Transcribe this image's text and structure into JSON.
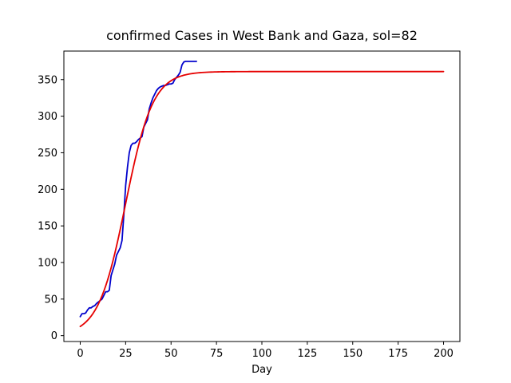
{
  "chart_data": {
    "type": "line",
    "title": "confirmed Cases in West Bank and Gaza, sol=82",
    "xlabel": "Day",
    "ylabel": "",
    "xlim": [
      -9,
      209
    ],
    "ylim": [
      -8,
      389
    ],
    "xticks": [
      0,
      25,
      50,
      75,
      100,
      125,
      150,
      175,
      200
    ],
    "yticks": [
      0,
      50,
      100,
      150,
      200,
      250,
      300,
      350
    ],
    "grid": false,
    "legend": "none",
    "series": [
      {
        "color": "#0000cc",
        "x": [
          0,
          1,
          2,
          3,
          4,
          5,
          6,
          7,
          8,
          9,
          10,
          11,
          12,
          13,
          14,
          15,
          16,
          17,
          18,
          19,
          20,
          21,
          22,
          23,
          24,
          25,
          26,
          27,
          28,
          29,
          30,
          31,
          32,
          33,
          34,
          35,
          36,
          37,
          38,
          39,
          40,
          41,
          42,
          43,
          44,
          45,
          46,
          47,
          48,
          49,
          50,
          51,
          52,
          53,
          54,
          55,
          56,
          57,
          58,
          59,
          60,
          61,
          62,
          63,
          64
        ],
        "y": [
          26,
          30,
          30,
          31,
          35,
          38,
          38,
          40,
          41,
          44,
          46,
          48,
          50,
          55,
          60,
          60,
          62,
          82,
          90,
          98,
          110,
          115,
          120,
          130,
          165,
          205,
          230,
          250,
          260,
          263,
          263,
          265,
          268,
          270,
          272,
          285,
          290,
          295,
          310,
          318,
          325,
          330,
          335,
          338,
          340,
          341,
          342,
          342,
          343,
          344,
          344,
          345,
          350,
          353,
          356,
          360,
          370,
          374,
          375,
          375,
          375,
          375,
          375,
          375,
          375
        ]
      },
      {
        "color": "#e60000",
        "model": "logistic",
        "cap": 361,
        "rate": 0.133,
        "midpoint": 25,
        "x_range": [
          0,
          200
        ]
      }
    ]
  }
}
